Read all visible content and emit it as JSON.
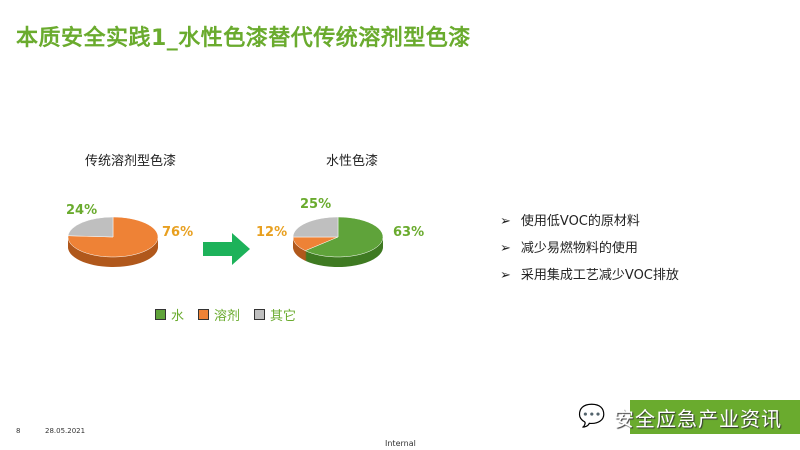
{
  "title": "本质安全实践1_水性色漆替代传统溶剂型色漆",
  "chart_data": [
    {
      "type": "pie",
      "title": "传统溶剂型色漆",
      "categories": [
        "水",
        "溶剂",
        "其它"
      ],
      "values": [
        0,
        76,
        24
      ],
      "labels": [
        "",
        "76%",
        "24%"
      ]
    },
    {
      "type": "pie",
      "title": "水性色漆",
      "categories": [
        "水",
        "溶剂",
        "其它"
      ],
      "values": [
        63,
        12,
        25
      ],
      "labels": [
        "63%",
        "12%",
        "25%"
      ]
    }
  ],
  "colors": {
    "水": "#5fa33a",
    "溶剂": "#ee8236",
    "其它": "#bfbfbf",
    "accent": "#6aab2e",
    "arrow": "#1db25a"
  },
  "legend": [
    "水",
    "溶剂",
    "其它"
  ],
  "bullets": [
    "使用低VOC的原材料",
    "减少易燃物料的使用",
    "采用集成工艺减少VOC排放"
  ],
  "bullet_icon": "arrow-bullet-icon",
  "footer": {
    "page": "8",
    "date": "28.05.2021",
    "classification": "Internal"
  },
  "watermark": "安全应急产业资讯"
}
